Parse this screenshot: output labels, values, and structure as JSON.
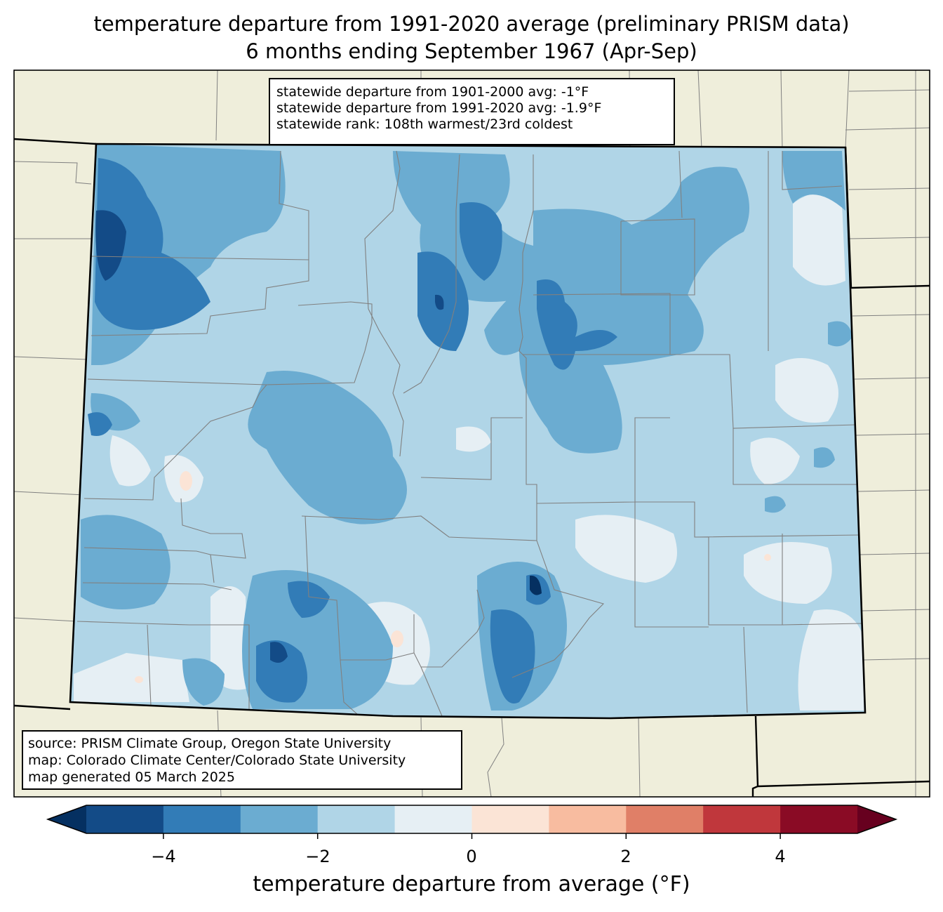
{
  "title": {
    "line1": "temperature departure from 1991-2020 average (preliminary PRISM data)",
    "line2": "6 months ending September 1967 (Apr-Sep)"
  },
  "stats": {
    "line1": "statewide departure from 1901-2000 avg: -1°F",
    "line2": "statewide departure from 1991-2020 avg: -1.9°F",
    "line3": "statewide rank: 108th warmest/23rd coldest"
  },
  "source": {
    "line1": "source: PRISM Climate Group, Oregon State University",
    "line2": "map: Colorado Climate Center/Colorado State University",
    "line3": "map generated 05 March 2025"
  },
  "colorbar": {
    "label": "temperature departure from average (°F)",
    "ticks": [
      "−4",
      "−2",
      "0",
      "2",
      "4"
    ],
    "bins": [
      -5,
      -4,
      -3,
      -2,
      -1,
      0,
      1,
      2,
      3,
      4,
      5
    ],
    "colors": [
      "#053061",
      "#134b87",
      "#327cb7",
      "#6bacd1",
      "#b0d5e7",
      "#e6eff4",
      "#fbe4d6",
      "#f8bca0",
      "#e07f67",
      "#c0373c",
      "#8a0b25",
      "#67001f"
    ]
  },
  "map_colors": {
    "land_outside": "#efeedb",
    "state_outline": "#000000",
    "county_lines": "#808080"
  }
}
